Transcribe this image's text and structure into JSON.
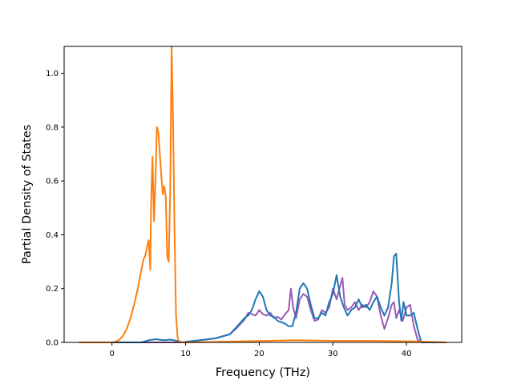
{
  "chart_data": {
    "type": "line",
    "title": "",
    "xlabel": "Frequency (THz)",
    "ylabel": "Partial Density of States",
    "xlim": [
      -6.5,
      47.5
    ],
    "ylim": [
      0.0,
      1.1
    ],
    "xticks": [
      0,
      10,
      20,
      30,
      40
    ],
    "yticks": [
      0.0,
      0.2,
      0.4,
      0.6,
      0.8,
      1.0
    ],
    "xtick_labels": [
      "0",
      "10",
      "20",
      "30",
      "40"
    ],
    "ytick_labels": [
      "0.0",
      "0.2",
      "0.4",
      "0.6",
      "0.8",
      "1.0"
    ],
    "grid": false,
    "legend": "none",
    "series": [
      {
        "color": "#9b59b6",
        "x": [
          -4.5,
          9.5,
          10,
          12,
          14,
          16,
          17,
          18,
          18.5,
          19,
          19.5,
          20,
          20.5,
          21,
          21.5,
          22,
          22.5,
          23,
          23.5,
          24,
          24.3,
          24.6,
          25,
          25.5,
          26,
          26.5,
          27,
          27.5,
          28,
          28.5,
          29,
          29.5,
          30,
          30.5,
          31,
          31.3,
          31.6,
          32,
          32.5,
          33,
          33.5,
          34,
          34.5,
          35,
          35.5,
          36,
          36.5,
          37,
          37.5,
          38,
          38.3,
          38.6,
          39,
          39.5,
          40,
          40.5,
          41,
          41.5,
          42,
          45.5
        ],
        "values": [
          0,
          0,
          0.002,
          0.008,
          0.015,
          0.03,
          0.055,
          0.085,
          0.11,
          0.105,
          0.1,
          0.12,
          0.105,
          0.1,
          0.11,
          0.09,
          0.095,
          0.085,
          0.105,
          0.12,
          0.2,
          0.13,
          0.09,
          0.16,
          0.18,
          0.17,
          0.12,
          0.08,
          0.085,
          0.12,
          0.11,
          0.13,
          0.2,
          0.16,
          0.21,
          0.24,
          0.14,
          0.12,
          0.13,
          0.15,
          0.12,
          0.14,
          0.13,
          0.15,
          0.19,
          0.17,
          0.1,
          0.05,
          0.09,
          0.14,
          0.15,
          0.09,
          0.12,
          0.08,
          0.13,
          0.14,
          0.06,
          0.01,
          0,
          0
        ]
      },
      {
        "color": "#1f77b4",
        "x": [
          -4.5,
          4,
          5,
          6,
          7,
          8,
          9,
          9.5,
          10,
          12,
          14,
          16,
          17,
          18,
          18.5,
          19,
          19.5,
          20,
          20.5,
          21,
          21.5,
          22,
          22.5,
          23,
          23.5,
          24,
          24.5,
          25,
          25.5,
          26,
          26.5,
          27,
          27.5,
          28,
          28.5,
          29,
          29.5,
          30,
          30.5,
          31,
          31.5,
          32,
          32.5,
          33,
          33.5,
          34,
          34.5,
          35,
          35.5,
          36,
          36.5,
          37,
          37.5,
          38,
          38.3,
          38.6,
          39,
          39.3,
          39.6,
          40,
          40.5,
          41,
          41.5,
          42,
          45.5
        ],
        "values": [
          0,
          0,
          0.008,
          0.012,
          0.008,
          0.01,
          0.005,
          0,
          0.002,
          0.008,
          0.015,
          0.03,
          0.06,
          0.09,
          0.1,
          0.12,
          0.16,
          0.19,
          0.17,
          0.12,
          0.1,
          0.095,
          0.08,
          0.075,
          0.07,
          0.06,
          0.06,
          0.11,
          0.2,
          0.22,
          0.2,
          0.14,
          0.09,
          0.09,
          0.11,
          0.1,
          0.15,
          0.18,
          0.25,
          0.17,
          0.13,
          0.1,
          0.12,
          0.13,
          0.16,
          0.13,
          0.14,
          0.12,
          0.15,
          0.17,
          0.13,
          0.1,
          0.13,
          0.22,
          0.32,
          0.33,
          0.15,
          0.08,
          0.15,
          0.1,
          0.1,
          0.11,
          0.05,
          0,
          0
        ]
      },
      {
        "color": "#ff7f0e",
        "x": [
          -4.5,
          0,
          0.5,
          1,
          1.5,
          2,
          2.5,
          3,
          3.5,
          4,
          4.3,
          4.5,
          4.8,
          5,
          5.2,
          5.3,
          5.5,
          5.7,
          5.9,
          6.1,
          6.3,
          6.5,
          6.7,
          6.9,
          7.1,
          7.3,
          7.5,
          7.7,
          7.9,
          8.1,
          8.3,
          8.5,
          8.7,
          8.9,
          9.1,
          9.3,
          10,
          20,
          25,
          30,
          35,
          41,
          45.5
        ],
        "values": [
          0,
          0,
          0.003,
          0.01,
          0.025,
          0.05,
          0.09,
          0.14,
          0.2,
          0.27,
          0.31,
          0.32,
          0.36,
          0.38,
          0.27,
          0.5,
          0.69,
          0.45,
          0.6,
          0.8,
          0.78,
          0.7,
          0.62,
          0.55,
          0.58,
          0.54,
          0.32,
          0.3,
          0.55,
          1.1,
          0.82,
          0.4,
          0.1,
          0.02,
          0.005,
          0,
          0,
          0.005,
          0.008,
          0.006,
          0.006,
          0.004,
          0
        ]
      }
    ]
  }
}
